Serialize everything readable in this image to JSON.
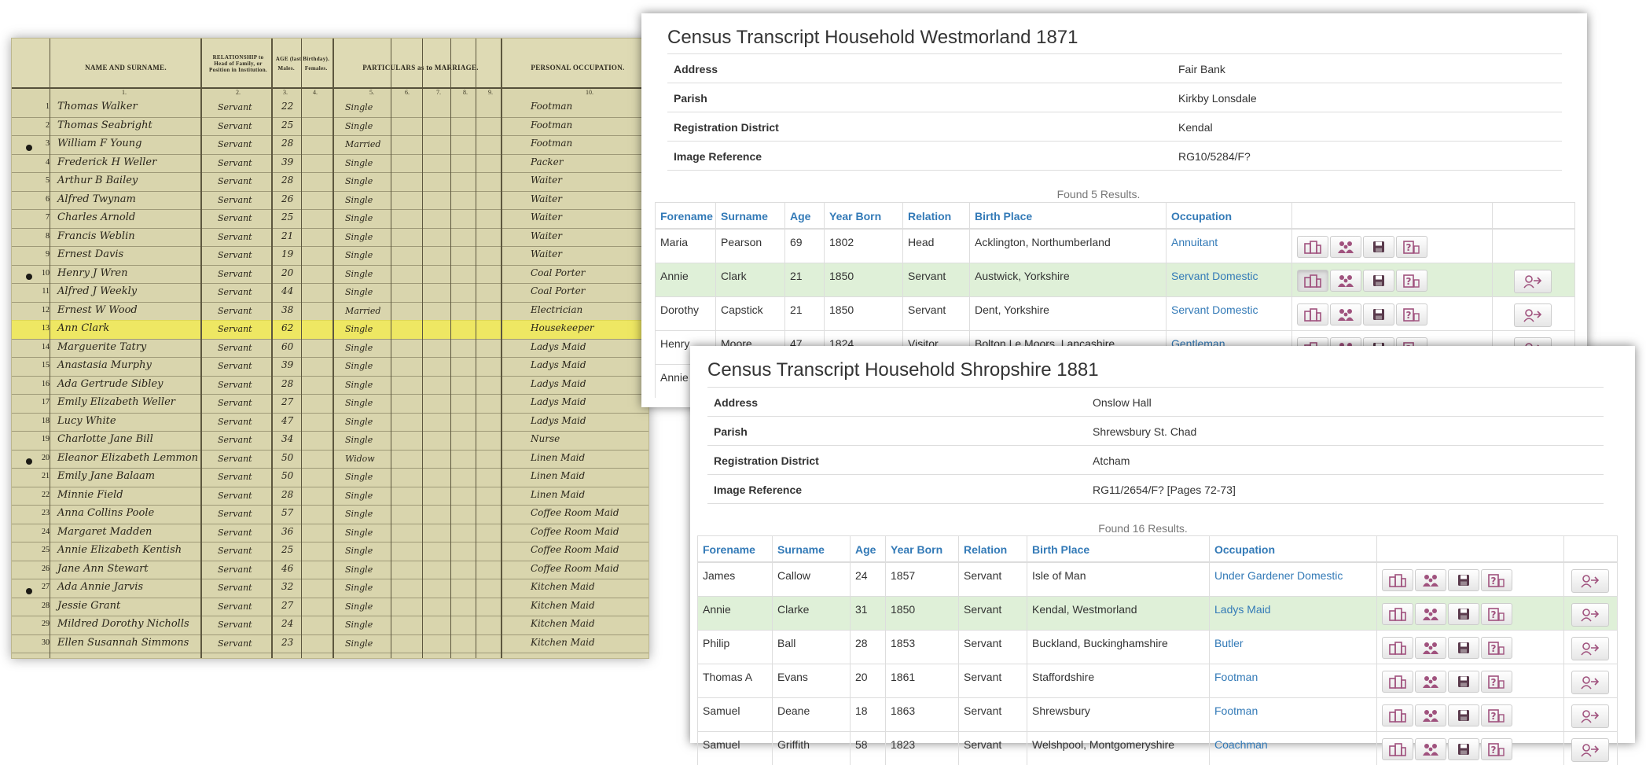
{
  "scan": {
    "headers": {
      "name": "NAME AND SURNAME.",
      "relationship": "RELATIONSHIP to Head of Family, or Position in Institution.",
      "age": "AGE (last Birthday).",
      "males": "Males.",
      "females": "Females.",
      "marriage": "PARTICULARS as to MARRIAGE.",
      "occupation": "PERSONAL OCCUPATION."
    },
    "col_numbers": [
      "1.",
      "2.",
      "3.",
      "4.",
      "5.",
      "6.",
      "7.",
      "8.",
      "9.",
      "10."
    ],
    "rows": [
      {
        "no": "1",
        "name": "Thomas Walker",
        "rel": "Servant",
        "age": "22",
        "mar": "Single",
        "occ": "Footman"
      },
      {
        "no": "2",
        "name": "Thomas Seabright",
        "rel": "Servant",
        "age": "25",
        "mar": "Single",
        "occ": "Footman"
      },
      {
        "no": "3",
        "name": "William F Young",
        "rel": "Servant",
        "age": "28",
        "mar": "Married",
        "occ": "Footman"
      },
      {
        "no": "4",
        "name": "Frederick H Weller",
        "rel": "Servant",
        "age": "39",
        "mar": "Single",
        "occ": "Packer"
      },
      {
        "no": "5",
        "name": "Arthur B Bailey",
        "rel": "Servant",
        "age": "28",
        "mar": "Single",
        "occ": "Waiter"
      },
      {
        "no": "6",
        "name": "Alfred Twynam",
        "rel": "Servant",
        "age": "26",
        "mar": "Single",
        "occ": "Waiter"
      },
      {
        "no": "7",
        "name": "Charles Arnold",
        "rel": "Servant",
        "age": "25",
        "mar": "Single",
        "occ": "Waiter"
      },
      {
        "no": "8",
        "name": "Francis Weblin",
        "rel": "Servant",
        "age": "21",
        "mar": "Single",
        "occ": "Waiter"
      },
      {
        "no": "9",
        "name": "Ernest Davis",
        "rel": "Servant",
        "age": "19",
        "mar": "Single",
        "occ": "Waiter"
      },
      {
        "no": "10",
        "name": "Henry J Wren",
        "rel": "Servant",
        "age": "20",
        "mar": "Single",
        "occ": "Coal Porter"
      },
      {
        "no": "11",
        "name": "Alfred J Weekly",
        "rel": "Servant",
        "age": "44",
        "mar": "Single",
        "occ": "Coal Porter"
      },
      {
        "no": "12",
        "name": "Ernest W Wood",
        "rel": "Servant",
        "age": "38",
        "mar": "Married",
        "occ": "Electrician"
      },
      {
        "no": "13",
        "name": "Ann Clark",
        "rel": "Servant",
        "age": "62",
        "mar": "Single",
        "occ": "Housekeeper"
      },
      {
        "no": "14",
        "name": "Marguerite Tatry",
        "rel": "Servant",
        "age": "60",
        "mar": "Single",
        "occ": "Ladys Maid"
      },
      {
        "no": "15",
        "name": "Anastasia Murphy",
        "rel": "Servant",
        "age": "39",
        "mar": "Single",
        "occ": "Ladys Maid"
      },
      {
        "no": "16",
        "name": "Ada Gertrude Sibley",
        "rel": "Servant",
        "age": "28",
        "mar": "Single",
        "occ": "Ladys Maid"
      },
      {
        "no": "17",
        "name": "Emily Elizabeth Weller",
        "rel": "Servant",
        "age": "27",
        "mar": "Single",
        "occ": "Ladys Maid"
      },
      {
        "no": "18",
        "name": "Lucy White",
        "rel": "Servant",
        "age": "47",
        "mar": "Single",
        "occ": "Ladys Maid"
      },
      {
        "no": "19",
        "name": "Charlotte Jane Bill",
        "rel": "Servant",
        "age": "34",
        "mar": "Single",
        "occ": "Nurse"
      },
      {
        "no": "20",
        "name": "Eleanor Elizabeth Lemmon",
        "rel": "Servant",
        "age": "50",
        "mar": "Widow",
        "occ": "Linen Maid"
      },
      {
        "no": "21",
        "name": "Emily Jane Balaam",
        "rel": "Servant",
        "age": "50",
        "mar": "Single",
        "occ": "Linen Maid"
      },
      {
        "no": "22",
        "name": "Minnie Field",
        "rel": "Servant",
        "age": "28",
        "mar": "Single",
        "occ": "Linen Maid"
      },
      {
        "no": "23",
        "name": "Anna Collins Poole",
        "rel": "Servant",
        "age": "57",
        "mar": "Single",
        "occ": "Coffee Room Maid"
      },
      {
        "no": "24",
        "name": "Margaret Madden",
        "rel": "Servant",
        "age": "36",
        "mar": "Single",
        "occ": "Coffee Room Maid"
      },
      {
        "no": "25",
        "name": "Annie Elizabeth Kentish",
        "rel": "Servant",
        "age": "25",
        "mar": "Single",
        "occ": "Coffee Room Maid"
      },
      {
        "no": "26",
        "name": "Jane Ann Stewart",
        "rel": "Servant",
        "age": "46",
        "mar": "Single",
        "occ": "Coffee Room Maid"
      },
      {
        "no": "27",
        "name": "Ada Annie Jarvis",
        "rel": "Servant",
        "age": "32",
        "mar": "Single",
        "occ": "Kitchen Maid"
      },
      {
        "no": "28",
        "name": "Jessie Grant",
        "rel": "Servant",
        "age": "27",
        "mar": "Single",
        "occ": "Kitchen Maid"
      },
      {
        "no": "29",
        "name": "Mildred Dorothy Nicholls",
        "rel": "Servant",
        "age": "24",
        "mar": "Single",
        "occ": "Kitchen Maid"
      },
      {
        "no": "30",
        "name": "Ellen Susannah Simmons",
        "rel": "Servant",
        "age": "23",
        "mar": "Single",
        "occ": "Kitchen Maid"
      }
    ],
    "highlight_row": 12,
    "highlight_color": "#f4ec4b"
  },
  "panel1": {
    "title": "Census Transcript Household Westmorland 1871",
    "info": [
      {
        "label": "Address",
        "value": "Fair Bank"
      },
      {
        "label": "Parish",
        "value": "Kirkby Lonsdale"
      },
      {
        "label": "Registration District",
        "value": "Kendal"
      },
      {
        "label": "Image Reference",
        "value": "RG10/5284/F?"
      }
    ],
    "found": "Found 5 Results.",
    "columns": [
      "Forename",
      "Surname",
      "Age",
      "Year Born",
      "Relation",
      "Birth Place",
      "Occupation"
    ],
    "rows": [
      {
        "forename": "Maria",
        "surname": "Pearson",
        "age": "69",
        "year": "1802",
        "relation": "Head",
        "birthplace": "Acklington, Northumberland",
        "occupation": "Annuitant",
        "extra": false,
        "highlight": false
      },
      {
        "forename": "Annie",
        "surname": "Clark",
        "age": "21",
        "year": "1850",
        "relation": "Servant",
        "birthplace": "Austwick, Yorkshire",
        "occupation": "Servant Domestic",
        "extra": true,
        "highlight": true
      },
      {
        "forename": "Dorothy",
        "surname": "Capstick",
        "age": "21",
        "year": "1850",
        "relation": "Servant",
        "birthplace": "Dent, Yorkshire",
        "occupation": "Servant Domestic",
        "extra": true,
        "highlight": false
      },
      {
        "forename": "Henry",
        "surname": "Moore",
        "age": "47",
        "year": "1824",
        "relation": "Visitor",
        "birthplace": "Bolton Le Moors, Lancashire",
        "occupation": "Gentleman",
        "extra": true,
        "highlight": false
      },
      {
        "forename": "Annie",
        "surname": "",
        "age": "",
        "year": "",
        "relation": "",
        "birthplace": "",
        "occupation": "",
        "extra": false,
        "highlight": false
      }
    ]
  },
  "panel2": {
    "title": "Census Transcript Household Shropshire 1881",
    "info": [
      {
        "label": "Address",
        "value": "Onslow Hall"
      },
      {
        "label": "Parish",
        "value": "Shrewsbury St. Chad"
      },
      {
        "label": "Registration District",
        "value": "Atcham"
      },
      {
        "label": "Image Reference",
        "value": "RG11/2654/F? [Pages 72-73]"
      }
    ],
    "found": "Found 16 Results.",
    "columns": [
      "Forename",
      "Surname",
      "Age",
      "Year Born",
      "Relation",
      "Birth Place",
      "Occupation"
    ],
    "rows": [
      {
        "forename": "James",
        "surname": "Callow",
        "age": "24",
        "year": "1857",
        "relation": "Servant",
        "birthplace": "Isle of Man",
        "occupation": "Under Gardener Domestic",
        "extra": true,
        "highlight": false
      },
      {
        "forename": "Annie",
        "surname": "Clarke",
        "age": "31",
        "year": "1850",
        "relation": "Servant",
        "birthplace": "Kendal, Westmorland",
        "occupation": "Ladys Maid",
        "extra": true,
        "highlight": true
      },
      {
        "forename": "Philip",
        "surname": "Ball",
        "age": "28",
        "year": "1853",
        "relation": "Servant",
        "birthplace": "Buckland, Buckinghamshire",
        "occupation": "Butler",
        "extra": true,
        "highlight": false
      },
      {
        "forename": "Thomas A",
        "surname": "Evans",
        "age": "20",
        "year": "1861",
        "relation": "Servant",
        "birthplace": "Staffordshire",
        "occupation": "Footman",
        "extra": true,
        "highlight": false
      },
      {
        "forename": "Samuel",
        "surname": "Deane",
        "age": "18",
        "year": "1863",
        "relation": "Servant",
        "birthplace": "Shrewsbury",
        "occupation": "Footman",
        "extra": true,
        "highlight": false
      },
      {
        "forename": "Samuel",
        "surname": "Griffith",
        "age": "58",
        "year": "1823",
        "relation": "Servant",
        "birthplace": "Welshpool, Montgomeryshire",
        "occupation": "Coachman",
        "extra": true,
        "highlight": false
      }
    ]
  },
  "icons": [
    "source-image-icon",
    "household-icon",
    "save-icon",
    "help-icon",
    "link-person-icon"
  ],
  "colors": {
    "link": "#337ab7",
    "row_highlight": "#dff0d8",
    "icon": "#a0527e",
    "text": "#333333"
  }
}
